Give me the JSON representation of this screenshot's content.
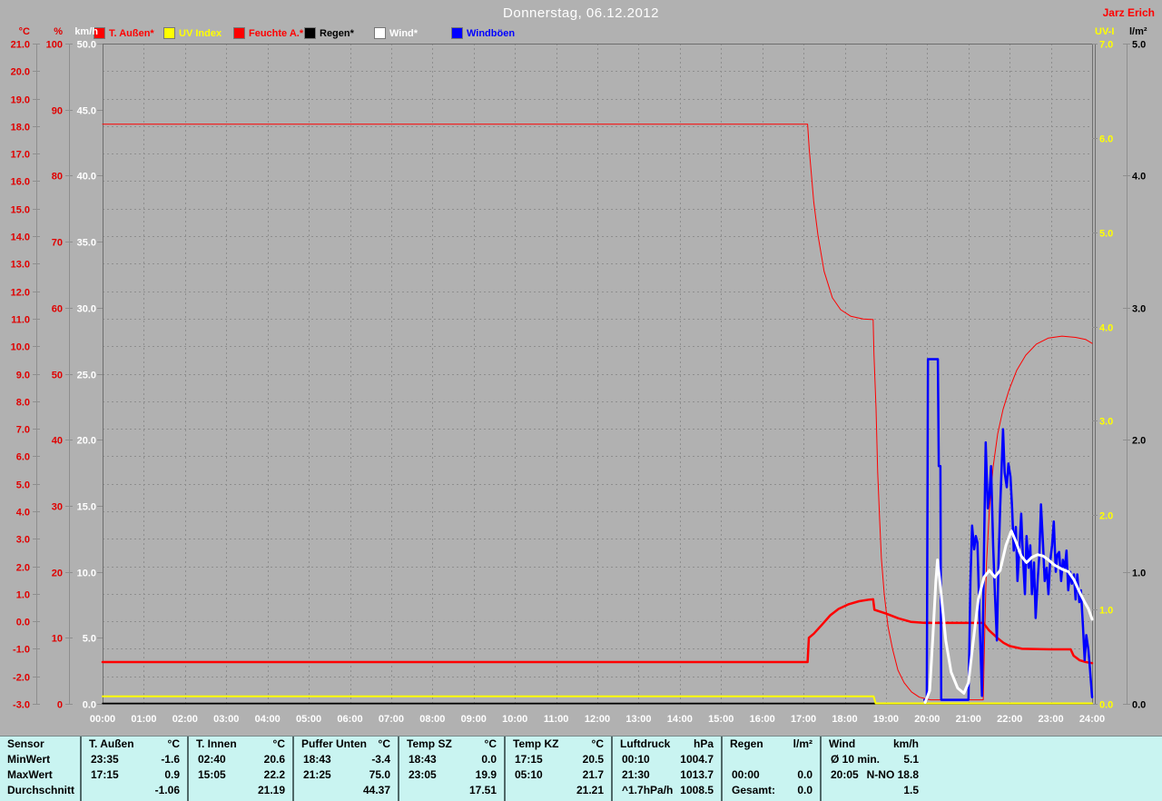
{
  "header": {
    "title": "Donnerstag, 06.12.2012",
    "owner": "Jarz Erich"
  },
  "colors": {
    "background": "#b1b1b1",
    "grid": "#8e8e8e",
    "plot_border": "#6e6e6e",
    "table_background": "#c9f4f1",
    "table_separator": "#4f6868",
    "red": "#ff0000",
    "yellow": "#ffff00",
    "blue": "#0000ff",
    "white": "#ffffff",
    "black": "#000000"
  },
  "legend": [
    {
      "label": "T. Außen*",
      "color": "#ff0000"
    },
    {
      "label": "UV Index",
      "color": "#ffff00"
    },
    {
      "label": "Feuchte A.*",
      "color": "#ff0000"
    },
    {
      "label": "Regen*",
      "color": "#000000"
    },
    {
      "label": "Wind*",
      "color": "#ffffff"
    },
    {
      "label": "Windböen",
      "color": "#0000ff"
    }
  ],
  "chart_data": {
    "type": "line",
    "title": "Donnerstag, 06.12.2012",
    "x_unit": "time",
    "x_range_hours": [
      0,
      24
    ],
    "x_labels": [
      "00:00",
      "01:00",
      "02:00",
      "03:00",
      "04:00",
      "05:00",
      "06:00",
      "07:00",
      "08:00",
      "09:00",
      "10:00",
      "11:00",
      "12:00",
      "13:00",
      "14:00",
      "15:00",
      "16:00",
      "17:00",
      "18:00",
      "19:00",
      "20:00",
      "21:00",
      "22:00",
      "23:00",
      "24:00"
    ],
    "grid": {
      "vertical": "hourly",
      "horizontal": "every 1 °C",
      "style": "dashed"
    },
    "legend_position": "top",
    "axes": [
      {
        "id": "degC",
        "title": "°C",
        "color": "#e00000",
        "min": -3,
        "max": 21,
        "step": 1,
        "decimals": 1,
        "side": "left"
      },
      {
        "id": "pct",
        "title": "%",
        "color": "#e00000",
        "min": 0,
        "max": 100,
        "step": 10,
        "decimals": 0,
        "side": "left"
      },
      {
        "id": "kmh",
        "title": "km/h",
        "color": "#ffffff",
        "min": 0,
        "max": 50,
        "step": 5,
        "decimals": 1,
        "side": "left"
      },
      {
        "id": "uvi",
        "title": "UV-I",
        "color": "#ffff00",
        "min": 0,
        "max": 7,
        "step": 1,
        "decimals": 1,
        "side": "right"
      },
      {
        "id": "lm2",
        "title": "l/m²",
        "color": "#000000",
        "min": 0,
        "max": 5,
        "step": 1,
        "decimals": 1,
        "side": "right"
      }
    ],
    "series": [
      {
        "name": "Regen",
        "axis": "lm2",
        "color": "#000000",
        "width": 1.5,
        "points": [
          [
            0,
            0
          ],
          [
            24,
            0
          ]
        ]
      },
      {
        "name": "UV Index",
        "axis": "uvi",
        "color": "#ffff00",
        "width": 2,
        "points": [
          [
            0,
            0.08
          ],
          [
            18.7,
            0.08
          ],
          [
            18.75,
            0.0
          ],
          [
            24,
            0.0
          ]
        ]
      },
      {
        "name": "Feuchte A.",
        "axis": "pct",
        "color": "#ff0000",
        "width": 1,
        "points": [
          [
            0,
            87.8
          ],
          [
            17.1,
            87.8
          ],
          [
            17.14,
            84.0
          ],
          [
            17.25,
            76.0
          ],
          [
            17.35,
            71.0
          ],
          [
            17.5,
            65.5
          ],
          [
            17.7,
            61.5
          ],
          [
            17.9,
            59.7
          ],
          [
            18.15,
            58.7
          ],
          [
            18.45,
            58.3
          ],
          [
            18.69,
            58.2
          ],
          [
            18.71,
            53.0
          ],
          [
            18.76,
            44.7
          ],
          [
            18.8,
            35.1
          ],
          [
            18.85,
            27.5
          ],
          [
            18.89,
            22.0
          ],
          [
            18.96,
            16.5
          ],
          [
            19.05,
            11.7
          ],
          [
            19.16,
            8.3
          ],
          [
            19.29,
            5.1
          ],
          [
            19.44,
            3.2
          ],
          [
            19.62,
            1.8
          ],
          [
            19.81,
            1.0
          ],
          [
            20.08,
            0.6
          ],
          [
            21.36,
            0.6
          ],
          [
            21.4,
            11.7
          ],
          [
            21.44,
            21.3
          ],
          [
            21.51,
            29.6
          ],
          [
            21.6,
            35.9
          ],
          [
            21.71,
            40.9
          ],
          [
            21.84,
            44.6
          ],
          [
            21.99,
            47.6
          ],
          [
            22.17,
            50.5
          ],
          [
            22.39,
            52.8
          ],
          [
            22.65,
            54.5
          ],
          [
            22.94,
            55.4
          ],
          [
            23.27,
            55.7
          ],
          [
            23.6,
            55.5
          ],
          [
            23.84,
            55.2
          ],
          [
            24.0,
            54.6
          ]
        ]
      },
      {
        "name": "T. Außen",
        "axis": "degC",
        "color": "#ff0000",
        "width": 2.5,
        "points": [
          [
            0,
            -1.48
          ],
          [
            17.1,
            -1.48
          ],
          [
            17.13,
            -0.6
          ],
          [
            17.25,
            -0.45
          ],
          [
            17.45,
            -0.12
          ],
          [
            17.65,
            0.22
          ],
          [
            17.85,
            0.45
          ],
          [
            18.1,
            0.62
          ],
          [
            18.35,
            0.73
          ],
          [
            18.6,
            0.79
          ],
          [
            18.69,
            0.8
          ],
          [
            18.72,
            0.42
          ],
          [
            19.0,
            0.28
          ],
          [
            19.3,
            0.11
          ],
          [
            19.6,
            -0.02
          ],
          [
            19.95,
            -0.06
          ],
          [
            21.36,
            -0.06
          ],
          [
            21.5,
            -0.33
          ],
          [
            21.7,
            -0.6
          ],
          [
            21.85,
            -0.78
          ],
          [
            22.0,
            -0.9
          ],
          [
            22.3,
            -1.0
          ],
          [
            23.0,
            -1.02
          ],
          [
            23.48,
            -1.02
          ],
          [
            23.55,
            -1.25
          ],
          [
            23.7,
            -1.42
          ],
          [
            23.85,
            -1.48
          ],
          [
            24.0,
            -1.52
          ]
        ]
      },
      {
        "name": "Windböen",
        "axis": "kmh",
        "color": "#0000ff",
        "width": 2.5,
        "points": [
          [
            19.93,
            0.3
          ],
          [
            19.99,
            0.3
          ],
          [
            20.02,
            26.1
          ],
          [
            20.26,
            26.1
          ],
          [
            20.28,
            18.0
          ],
          [
            20.32,
            18.0
          ],
          [
            20.34,
            0.3
          ],
          [
            21.0,
            0.3
          ],
          [
            21.05,
            9.3
          ],
          [
            21.09,
            13.5
          ],
          [
            21.14,
            11.7
          ],
          [
            21.18,
            12.7
          ],
          [
            21.22,
            12.2
          ],
          [
            21.27,
            6.5
          ],
          [
            21.33,
            0.6
          ],
          [
            21.38,
            12.0
          ],
          [
            21.42,
            19.8
          ],
          [
            21.47,
            14.8
          ],
          [
            21.51,
            15.8
          ],
          [
            21.55,
            18.0
          ],
          [
            21.6,
            12.0
          ],
          [
            21.64,
            8.6
          ],
          [
            21.69,
            4.8
          ],
          [
            21.73,
            10.7
          ],
          [
            21.77,
            14.8
          ],
          [
            21.84,
            20.8
          ],
          [
            21.88,
            17.5
          ],
          [
            21.93,
            16.4
          ],
          [
            21.97,
            18.2
          ],
          [
            22.02,
            17.2
          ],
          [
            22.06,
            14.8
          ],
          [
            22.1,
            11.6
          ],
          [
            22.15,
            13.4
          ],
          [
            22.19,
            9.3
          ],
          [
            22.24,
            12.0
          ],
          [
            22.28,
            14.4
          ],
          [
            22.32,
            11.3
          ],
          [
            22.37,
            8.3
          ],
          [
            22.41,
            12.7
          ],
          [
            22.46,
            10.3
          ],
          [
            22.5,
            12.0
          ],
          [
            22.54,
            8.3
          ],
          [
            22.59,
            10.7
          ],
          [
            22.63,
            6.5
          ],
          [
            22.68,
            9.3
          ],
          [
            22.72,
            11.3
          ],
          [
            22.76,
            15.1
          ],
          [
            22.81,
            12.0
          ],
          [
            22.85,
            9.3
          ],
          [
            22.9,
            10.3
          ],
          [
            22.94,
            8.3
          ],
          [
            22.98,
            10.7
          ],
          [
            23.03,
            12.0
          ],
          [
            23.07,
            13.8
          ],
          [
            23.12,
            10.0
          ],
          [
            23.16,
            11.3
          ],
          [
            23.2,
            11.5
          ],
          [
            23.25,
            9.3
          ],
          [
            23.29,
            10.9
          ],
          [
            23.34,
            10.3
          ],
          [
            23.38,
            11.6
          ],
          [
            23.42,
            8.6
          ],
          [
            23.47,
            10.0
          ],
          [
            23.51,
            9.1
          ],
          [
            23.56,
            9.8
          ],
          [
            23.6,
            7.9
          ],
          [
            23.64,
            9.8
          ],
          [
            23.69,
            7.7
          ],
          [
            23.73,
            8.6
          ],
          [
            23.78,
            5.8
          ],
          [
            23.82,
            3.3
          ],
          [
            23.86,
            5.2
          ],
          [
            23.91,
            4.1
          ],
          [
            23.95,
            2.6
          ],
          [
            24.0,
            0.5
          ]
        ]
      },
      {
        "name": "Wind",
        "axis": "kmh",
        "color": "#ffffff",
        "width": 3,
        "points": [
          [
            19.95,
            0.1
          ],
          [
            20.06,
            1.0
          ],
          [
            20.14,
            5.2
          ],
          [
            20.21,
            9.3
          ],
          [
            20.25,
            10.9
          ],
          [
            20.34,
            8.3
          ],
          [
            20.45,
            4.8
          ],
          [
            20.58,
            2.4
          ],
          [
            20.74,
            1.2
          ],
          [
            20.89,
            0.8
          ],
          [
            21.0,
            1.6
          ],
          [
            21.11,
            4.5
          ],
          [
            21.24,
            7.9
          ],
          [
            21.38,
            9.6
          ],
          [
            21.51,
            10.1
          ],
          [
            21.64,
            9.6
          ],
          [
            21.77,
            10.1
          ],
          [
            21.91,
            12.0
          ],
          [
            22.04,
            13.1
          ],
          [
            22.15,
            12.3
          ],
          [
            22.28,
            11.2
          ],
          [
            22.41,
            10.7
          ],
          [
            22.54,
            11.1
          ],
          [
            22.68,
            11.3
          ],
          [
            22.81,
            11.2
          ],
          [
            22.94,
            10.9
          ],
          [
            23.09,
            10.5
          ],
          [
            23.27,
            10.2
          ],
          [
            23.43,
            10.0
          ],
          [
            23.56,
            9.4
          ],
          [
            23.69,
            8.5
          ],
          [
            23.82,
            7.7
          ],
          [
            23.91,
            7.2
          ],
          [
            24.0,
            6.4
          ]
        ]
      }
    ]
  },
  "table": {
    "row_headers": [
      "Sensor",
      "MinWert",
      "MaxWert",
      "Durchschnitt"
    ],
    "groups": [
      {
        "name": "T. Außen",
        "unit": "°C",
        "rows": [
          [
            "23:35",
            "-1.6"
          ],
          [
            "17:15",
            "0.9"
          ],
          [
            "",
            "-1.06"
          ]
        ]
      },
      {
        "name": "T. Innen",
        "unit": "°C",
        "rows": [
          [
            "02:40",
            "20.6"
          ],
          [
            "15:05",
            "22.2"
          ],
          [
            "",
            "21.19"
          ]
        ]
      },
      {
        "name": "Puffer Unten",
        "unit": "°C",
        "rows": [
          [
            "18:43",
            "-3.4"
          ],
          [
            "21:25",
            "75.0"
          ],
          [
            "",
            "44.37"
          ]
        ]
      },
      {
        "name": "Temp SZ",
        "unit": "°C",
        "rows": [
          [
            "18:43",
            "0.0"
          ],
          [
            "23:05",
            "19.9"
          ],
          [
            "",
            "17.51"
          ]
        ]
      },
      {
        "name": "Temp KZ",
        "unit": "°C",
        "rows": [
          [
            "17:15",
            "20.5"
          ],
          [
            "05:10",
            "21.7"
          ],
          [
            "",
            "21.21"
          ]
        ]
      },
      {
        "name": "Luftdruck",
        "unit": "hPa",
        "rows": [
          [
            "00:10",
            "1004.7"
          ],
          [
            "21:30",
            "1013.7"
          ],
          [
            "^1.7hPa/h",
            "1008.5"
          ]
        ]
      },
      {
        "name": "Regen",
        "unit": "l/m²",
        "rows": [
          [
            "",
            ""
          ],
          [
            "00:00",
            "0.0"
          ],
          [
            "Gesamt:",
            "0.0"
          ]
        ]
      },
      {
        "name": "Wind",
        "unit": "km/h",
        "rows": [
          [
            "Ø 10 min.",
            "5.1"
          ],
          [
            "20:05",
            "N-NO 18.8"
          ],
          [
            "",
            "1.5"
          ]
        ]
      }
    ]
  }
}
